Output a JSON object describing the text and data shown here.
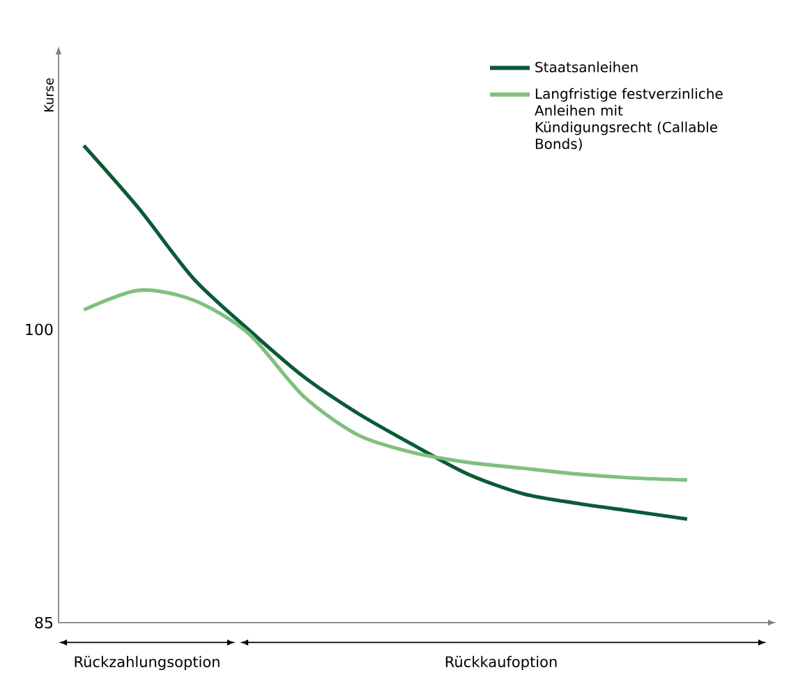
{
  "chart_data": {
    "type": "line",
    "ylabel": "Kurse",
    "categories": [
      null,
      null,
      null,
      null,
      null,
      null,
      null,
      null,
      null,
      null,
      null,
      null
    ],
    "series": [
      {
        "name": "Staatsanleihen",
        "color": "#0b5a36",
        "values": [
          109.4,
          106.2,
          102.6,
          100.0,
          97.6,
          95.7,
          94.1,
          92.6,
          91.6,
          91.1,
          90.7,
          90.3
        ]
      },
      {
        "name": "Langfristige festverzinliche Anleihen mit Kündigungsrecht (Callable Bonds)",
        "color": "#7fc07f",
        "values": [
          101.0,
          102.0,
          101.5,
          99.8,
          96.6,
          94.6,
          93.7,
          93.2,
          92.9,
          92.6,
          92.4,
          92.3
        ]
      }
    ],
    "ylim": [
      85,
      114
    ],
    "yticks": [
      85,
      100
    ],
    "legend": "top right",
    "grid": false,
    "annotations": [
      "Rückzahlungsoption",
      "Rückkaufoption"
    ]
  }
}
